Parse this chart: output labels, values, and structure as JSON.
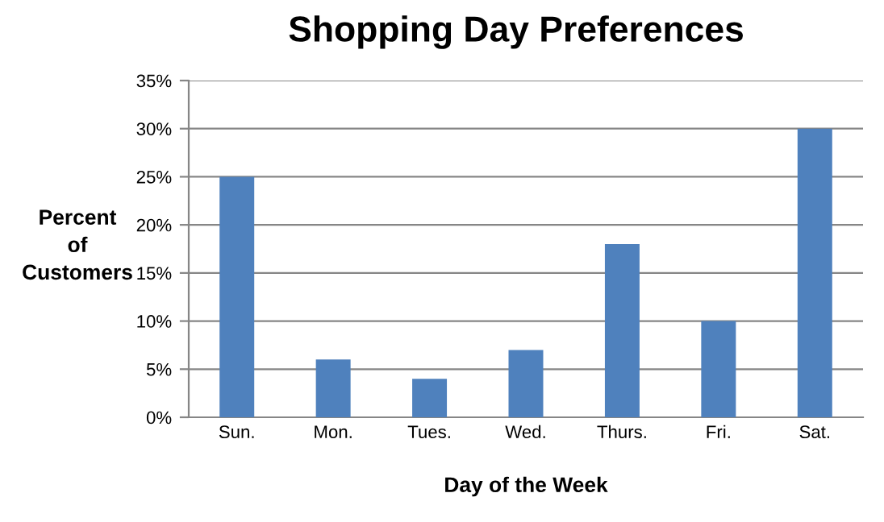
{
  "chart_data": {
    "type": "bar",
    "title": "Shopping Day Preferences",
    "xlabel": "Day of the Week",
    "ylabel": "Percent\nof\nCustomers",
    "categories": [
      "Sun.",
      "Mon.",
      "Tues.",
      "Wed.",
      "Thurs.",
      "Fri.",
      "Sat."
    ],
    "values": [
      25,
      6,
      4,
      7,
      18,
      10,
      30
    ],
    "color": "#4f81bd",
    "ylim": [
      0,
      35
    ],
    "yticks": [
      {
        "value": 0,
        "label": "0%"
      },
      {
        "value": 5,
        "label": "5%"
      },
      {
        "value": 10,
        "label": "10%"
      },
      {
        "value": 15,
        "label": "15%"
      },
      {
        "value": 20,
        "label": "20%"
      },
      {
        "value": 25,
        "label": "25%"
      },
      {
        "value": 30,
        "label": "30%"
      },
      {
        "value": 35,
        "label": "35%"
      }
    ],
    "grid": "y",
    "legend": false
  }
}
